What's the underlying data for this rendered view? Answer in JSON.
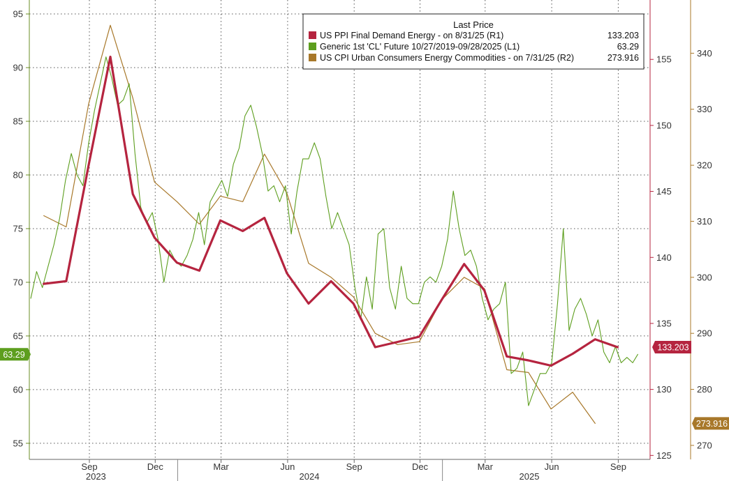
{
  "chart_data": {
    "type": "line",
    "legend": {
      "title": "Last Price",
      "placement": "top-right",
      "entries": [
        {
          "label": "US PPI Final Demand Energy -   on 8/31/25  (R1)",
          "value": "133.203"
        },
        {
          "label": "Generic 1st 'CL' Future 10/27/2019-09/28/2025   (L1)",
          "value": "63.29"
        },
        {
          "label": "US CPI Urban Consumers Energy Commodities -   on 7/31/25  (R2)",
          "value": "273.916"
        }
      ]
    },
    "x_axis": {
      "type": "date",
      "range": [
        "2023-06-10",
        "2025-10-15"
      ],
      "month_ticks": [
        {
          "label": "Sep",
          "date": "2023-09-01"
        },
        {
          "label": "Dec",
          "date": "2023-12-01"
        },
        {
          "label": "Mar",
          "date": "2024-03-01"
        },
        {
          "label": "Jun",
          "date": "2024-06-01"
        },
        {
          "label": "Sep",
          "date": "2024-09-01"
        },
        {
          "label": "Dec",
          "date": "2024-12-01"
        },
        {
          "label": "Mar",
          "date": "2025-03-01"
        },
        {
          "label": "Jun",
          "date": "2025-06-01"
        },
        {
          "label": "Sep",
          "date": "2025-09-01"
        }
      ],
      "year_labels": [
        {
          "label": "2023",
          "date": "2023-09-10"
        },
        {
          "label": "2024",
          "date": "2024-07-01"
        },
        {
          "label": "2025",
          "date": "2025-05-01"
        }
      ],
      "year_separators": [
        "2024-01-01",
        "2025-01-01"
      ]
    },
    "y_axis_left": {
      "range": [
        53.5,
        96.3
      ],
      "ticks": [
        55,
        60,
        65,
        70,
        75,
        80,
        85,
        90,
        95
      ]
    },
    "y_axis_right1": {
      "range": [
        124.7,
        159.5
      ],
      "ticks": [
        125,
        130,
        135,
        140,
        145,
        150,
        155
      ]
    },
    "y_axis_right2": {
      "range": [
        267.5,
        349.5
      ],
      "ticks": [
        270,
        280,
        290,
        300,
        310,
        320,
        330,
        340
      ]
    },
    "grid": true,
    "last_value_tags": [
      {
        "series": "ppi",
        "label": "133.203",
        "value": 133.203,
        "color": "#b5243f"
      },
      {
        "series": "cl",
        "label": "63.29",
        "value": 63.29,
        "color": "#5d9e1e"
      },
      {
        "series": "cpi",
        "label": "273.916",
        "value": 273.916,
        "color": "#a8782a"
      }
    ],
    "series": [
      {
        "key": "ppi",
        "name": "US PPI Final Demand Energy -   on 8/31/25  (R1)",
        "axis": "right1",
        "color": "#b5243f",
        "width": 3.2,
        "x": [
          "2023-06-30",
          "2023-07-31",
          "2023-08-31",
          "2023-09-30",
          "2023-10-31",
          "2023-11-30",
          "2023-12-31",
          "2024-01-31",
          "2024-02-29",
          "2024-03-31",
          "2024-04-30",
          "2024-05-31",
          "2024-06-30",
          "2024-07-31",
          "2024-08-31",
          "2024-09-30",
          "2024-10-31",
          "2024-11-30",
          "2024-12-31",
          "2025-01-31",
          "2025-02-28",
          "2025-03-31",
          "2025-04-30",
          "2025-05-31",
          "2025-06-30",
          "2025-07-31",
          "2025-08-31"
        ],
        "y": [
          138.0,
          138.2,
          147.0,
          155.2,
          144.8,
          141.5,
          139.6,
          139.0,
          142.8,
          142.0,
          143.0,
          138.8,
          136.5,
          138.2,
          136.5,
          133.2,
          133.6,
          134.0,
          136.8,
          139.5,
          137.5,
          132.5,
          132.2,
          131.8,
          132.7,
          133.8,
          133.203
        ]
      },
      {
        "key": "cpi",
        "name": "US CPI Urban Consumers Energy Commodities -   on 7/31/25  (R2)",
        "axis": "right2",
        "color": "#a8782a",
        "width": 1.2,
        "x": [
          "2023-06-30",
          "2023-07-31",
          "2023-08-31",
          "2023-09-30",
          "2023-10-31",
          "2023-11-30",
          "2023-12-31",
          "2024-01-31",
          "2024-02-29",
          "2024-03-31",
          "2024-04-30",
          "2024-05-31",
          "2024-06-30",
          "2024-07-31",
          "2024-08-31",
          "2024-09-30",
          "2024-10-31",
          "2024-11-30",
          "2024-12-31",
          "2025-01-31",
          "2025-02-28",
          "2025-03-31",
          "2025-04-30",
          "2025-05-31",
          "2025-06-30",
          "2025-07-31"
        ],
        "y": [
          311.0,
          309.0,
          331.0,
          345.0,
          332.0,
          317.0,
          313.5,
          309.5,
          314.5,
          313.5,
          322.0,
          315.0,
          302.5,
          300.0,
          296.5,
          290.0,
          288.0,
          288.5,
          296.0,
          300.0,
          298.0,
          283.5,
          283.0,
          276.5,
          279.5,
          273.916
        ]
      },
      {
        "key": "cl",
        "name": "Generic 1st 'CL' Future 10/27/2019-09/28/2025   (L1)",
        "axis": "left",
        "color": "#5d9e1e",
        "width": 1.1,
        "x": [
          "2023-06-12",
          "2023-06-20",
          "2023-06-28",
          "2023-07-06",
          "2023-07-14",
          "2023-07-22",
          "2023-07-30",
          "2023-08-07",
          "2023-08-15",
          "2023-08-23",
          "2023-08-31",
          "2023-09-08",
          "2023-09-16",
          "2023-09-24",
          "2023-10-02",
          "2023-10-10",
          "2023-10-18",
          "2023-10-26",
          "2023-11-03",
          "2023-11-11",
          "2023-11-19",
          "2023-11-27",
          "2023-12-05",
          "2023-12-13",
          "2023-12-21",
          "2023-12-29",
          "2024-01-06",
          "2024-01-14",
          "2024-01-22",
          "2024-01-30",
          "2024-02-07",
          "2024-02-15",
          "2024-02-23",
          "2024-03-02",
          "2024-03-10",
          "2024-03-18",
          "2024-03-26",
          "2024-04-03",
          "2024-04-11",
          "2024-04-19",
          "2024-04-27",
          "2024-05-05",
          "2024-05-13",
          "2024-05-21",
          "2024-05-29",
          "2024-06-06",
          "2024-06-14",
          "2024-06-22",
          "2024-06-30",
          "2024-07-08",
          "2024-07-16",
          "2024-07-24",
          "2024-08-01",
          "2024-08-09",
          "2024-08-17",
          "2024-08-25",
          "2024-09-02",
          "2024-09-10",
          "2024-09-18",
          "2024-09-26",
          "2024-10-04",
          "2024-10-12",
          "2024-10-20",
          "2024-10-28",
          "2024-11-05",
          "2024-11-13",
          "2024-11-21",
          "2024-11-29",
          "2024-12-07",
          "2024-12-15",
          "2024-12-23",
          "2024-12-31",
          "2025-01-08",
          "2025-01-16",
          "2025-01-24",
          "2025-02-01",
          "2025-02-09",
          "2025-02-17",
          "2025-02-25",
          "2025-03-05",
          "2025-03-13",
          "2025-03-21",
          "2025-03-29",
          "2025-04-06",
          "2025-04-14",
          "2025-04-22",
          "2025-04-30",
          "2025-05-08",
          "2025-05-16",
          "2025-05-24",
          "2025-06-01",
          "2025-06-09",
          "2025-06-17",
          "2025-06-25",
          "2025-07-03",
          "2025-07-11",
          "2025-07-19",
          "2025-07-27",
          "2025-08-04",
          "2025-08-12",
          "2025-08-20",
          "2025-08-28",
          "2025-09-05",
          "2025-09-13",
          "2025-09-21",
          "2025-09-28"
        ],
        "y": [
          68.5,
          71.0,
          69.5,
          71.5,
          73.5,
          76.0,
          79.5,
          82.0,
          80.0,
          79.0,
          83.0,
          86.0,
          88.5,
          91.0,
          89.0,
          86.5,
          87.0,
          88.5,
          82.0,
          77.0,
          75.5,
          76.5,
          74.0,
          70.0,
          73.0,
          72.0,
          71.5,
          72.5,
          74.0,
          76.5,
          73.5,
          77.5,
          78.5,
          79.5,
          78.0,
          81.0,
          82.5,
          85.5,
          86.5,
          84.5,
          82.0,
          78.5,
          79.0,
          77.5,
          79.0,
          74.5,
          78.5,
          81.5,
          81.5,
          83.0,
          81.5,
          78.0,
          75.0,
          76.5,
          75.0,
          73.5,
          69.5,
          66.5,
          70.5,
          67.5,
          74.5,
          75.0,
          69.5,
          67.5,
          71.5,
          68.5,
          68.0,
          68.0,
          70.0,
          70.5,
          70.0,
          71.5,
          74.0,
          78.5,
          75.0,
          72.5,
          73.0,
          71.5,
          68.5,
          66.5,
          67.5,
          68.0,
          70.0,
          61.5,
          62.0,
          63.5,
          58.5,
          60.0,
          61.5,
          61.5,
          62.5,
          68.0,
          75.0,
          65.5,
          67.5,
          68.5,
          67.0,
          65.0,
          66.5,
          63.5,
          62.5,
          64.0,
          62.5,
          63.0,
          62.5,
          63.29
        ]
      }
    ]
  }
}
